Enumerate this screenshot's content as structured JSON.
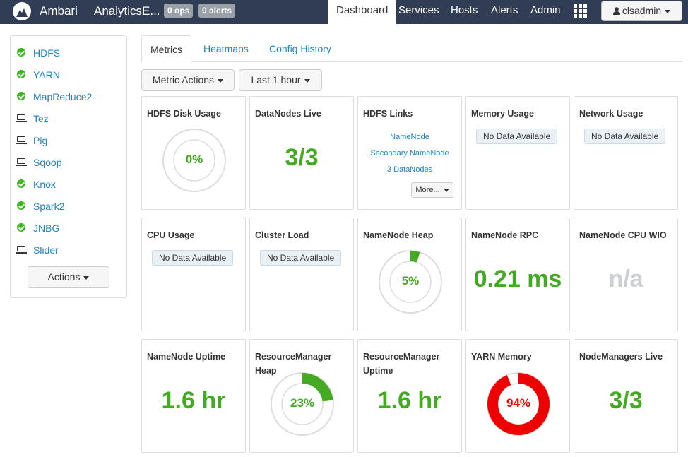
{
  "header": {
    "brand": "Ambari",
    "cluster_name": "AnalyticsE...",
    "ops_badge": "0 ops",
    "alerts_badge": "0 alerts",
    "nav": [
      "Dashboard",
      "Services",
      "Hosts",
      "Alerts",
      "Admin"
    ],
    "active_nav": "Dashboard",
    "user": "clsadmin",
    "bg_color": "#313d54"
  },
  "sidebar": {
    "services": [
      {
        "name": "HDFS",
        "status": "ok"
      },
      {
        "name": "YARN",
        "status": "ok"
      },
      {
        "name": "MapReduce2",
        "status": "ok"
      },
      {
        "name": "Tez",
        "status": "client"
      },
      {
        "name": "Pig",
        "status": "client"
      },
      {
        "name": "Sqoop",
        "status": "client"
      },
      {
        "name": "Knox",
        "status": "ok"
      },
      {
        "name": "Spark2",
        "status": "ok"
      },
      {
        "name": "JNBG",
        "status": "ok"
      },
      {
        "name": "Slider",
        "status": "client"
      }
    ],
    "actions_label": "Actions"
  },
  "tabs": [
    "Metrics",
    "Heatmaps",
    "Config History"
  ],
  "toolbar": {
    "metric_actions": "Metric Actions",
    "time_range": "Last 1 hour"
  },
  "colors": {
    "green": "#44aa22",
    "red": "#ee0000",
    "link": "#1a83c8"
  },
  "widgets": {
    "hdfs_disk": {
      "title": "HDFS Disk Usage",
      "value": "0%",
      "fraction": 0.0
    },
    "datanodes_live": {
      "title": "DataNodes Live",
      "value": "3/3"
    },
    "hdfs_links": {
      "title": "HDFS Links",
      "links": [
        "NameNode",
        "Secondary NameNode",
        "3 DataNodes"
      ],
      "more": "More..."
    },
    "memory_usage": {
      "title": "Memory Usage",
      "nodata": "No Data Available"
    },
    "network_usage": {
      "title": "Network Usage",
      "nodata": "No Data Available"
    },
    "cpu_usage": {
      "title": "CPU Usage",
      "nodata": "No Data Available"
    },
    "cluster_load": {
      "title": "Cluster Load",
      "nodata": "No Data Available"
    },
    "namenode_heap": {
      "title": "NameNode Heap",
      "value": "5%",
      "fraction": 0.05
    },
    "namenode_rpc": {
      "title": "NameNode RPC",
      "value": "0.21 ms"
    },
    "namenode_cpu_wio": {
      "title": "NameNode CPU WIO",
      "value": "n/a"
    },
    "namenode_uptime": {
      "title": "NameNode Uptime",
      "value": "1.6 hr"
    },
    "rm_heap": {
      "title": "ResourceManager Heap",
      "value": "23%",
      "fraction": 0.23
    },
    "rm_uptime": {
      "title": "ResourceManager Uptime",
      "value": "1.6 hr"
    },
    "yarn_memory": {
      "title": "YARN Memory",
      "value": "94%",
      "fraction": 0.94
    },
    "nodemanagers_live": {
      "title": "NodeManagers Live",
      "value": "3/3"
    }
  }
}
